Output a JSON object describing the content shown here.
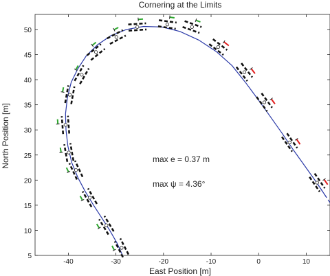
{
  "chart_data": {
    "type": "line",
    "title": "Cornering at the Limits",
    "xlabel": "East Position [m]",
    "ylabel": "North Position [m]",
    "xlim": [
      -47,
      15
    ],
    "ylim": [
      5,
      53
    ],
    "xticks": [
      -40,
      -30,
      -20,
      -10,
      0,
      10
    ],
    "yticks": [
      5,
      10,
      15,
      20,
      25,
      30,
      35,
      40,
      45,
      50
    ],
    "grid": false,
    "annotations": [
      "max e = 0.37 m",
      "max ψ = 4.36°"
    ],
    "series": [
      {
        "style": "solid",
        "color": "#2b3aa8",
        "x": [
          -28.6,
          -29.8,
          -31.3,
          -33.0,
          -34.7,
          -36.5,
          -38.0,
          -39.3,
          -40.1,
          -40.5,
          -40.6,
          -40.2,
          -39.4,
          -38.0,
          -36.2,
          -33.8,
          -31.0,
          -27.8,
          -24.2,
          -20.3,
          -16.5,
          -12.6,
          -8.9,
          -5.6,
          -2.8,
          -0.3,
          2.2,
          4.8,
          7.3,
          9.8,
          12.2,
          14.3
        ],
        "y": [
          5.0,
          7.5,
          10.0,
          12.5,
          15.0,
          17.8,
          20.5,
          23.5,
          26.8,
          30.0,
          33.2,
          36.5,
          39.5,
          42.2,
          44.8,
          47.0,
          48.8,
          50.0,
          50.6,
          50.5,
          49.6,
          47.9,
          45.6,
          42.8,
          39.5,
          36.3,
          33.0,
          29.5,
          26.0,
          22.7,
          19.5,
          16.5
        ]
      },
      {
        "style": "dashed",
        "color": "#2b3aa8",
        "x": [
          12.2,
          15.0
        ],
        "y": [
          19.5,
          15.5
        ]
      }
    ],
    "markers": {
      "x": [
        -28.8,
        -32.0,
        -35.5,
        -38.4,
        -39.9,
        -40.6,
        -39.7,
        -37.2,
        -34.2,
        -29.9,
        -25.5,
        -19.2,
        -14.0,
        -8.5,
        -3.0,
        1.2,
        6.5,
        12.3
      ],
      "y": [
        6.5,
        11.0,
        16.5,
        22.0,
        25.5,
        31.0,
        37.0,
        41.0,
        45.5,
        48.5,
        50.5,
        51.0,
        50.5,
        46.5,
        41.5,
        35.5,
        27.5,
        19.5
      ]
    },
    "vehicle_headings": [
      {
        "x": -28.8,
        "y": 6.5,
        "color": "black",
        "tick_color": "green"
      },
      {
        "x": -32.0,
        "y": 11.0,
        "color": "black",
        "tick_color": "green"
      },
      {
        "x": -35.5,
        "y": 16.5,
        "color": "black",
        "tick_color": "green"
      },
      {
        "x": -38.4,
        "y": 22.0,
        "color": "black",
        "tick_color": "green"
      },
      {
        "x": -39.9,
        "y": 25.5,
        "color": "black",
        "tick_color": "green"
      },
      {
        "x": -40.6,
        "y": 31.0,
        "color": "black",
        "tick_color": "green"
      },
      {
        "x": -39.7,
        "y": 37.0,
        "color": "black",
        "tick_color": "green"
      },
      {
        "x": -37.2,
        "y": 41.0,
        "color": "black",
        "tick_color": "green"
      },
      {
        "x": -34.2,
        "y": 45.5,
        "color": "black",
        "tick_color": "green"
      },
      {
        "x": -29.9,
        "y": 48.5,
        "color": "black",
        "tick_color": "green"
      },
      {
        "x": -25.5,
        "y": 50.5,
        "color": "black",
        "tick_color": "green"
      },
      {
        "x": -19.2,
        "y": 51.0,
        "color": "black",
        "tick_color": "green"
      },
      {
        "x": -14.0,
        "y": 50.5,
        "color": "black",
        "tick_color": "green"
      },
      {
        "x": -8.5,
        "y": 46.5,
        "color": "black",
        "tick_color": "red"
      },
      {
        "x": -3.0,
        "y": 41.5,
        "color": "black",
        "tick_color": "red"
      },
      {
        "x": 1.2,
        "y": 35.5,
        "color": "black",
        "tick_color": "red"
      },
      {
        "x": 6.5,
        "y": 27.5,
        "color": "black",
        "tick_color": "red"
      },
      {
        "x": 12.3,
        "y": 19.5,
        "color": "black",
        "tick_color": "red"
      }
    ]
  },
  "colors": {
    "path": "#2b3aa8",
    "vehicle": "#111111",
    "slip_front": "#2ea82e",
    "slip_rear": "#e01b1b"
  }
}
